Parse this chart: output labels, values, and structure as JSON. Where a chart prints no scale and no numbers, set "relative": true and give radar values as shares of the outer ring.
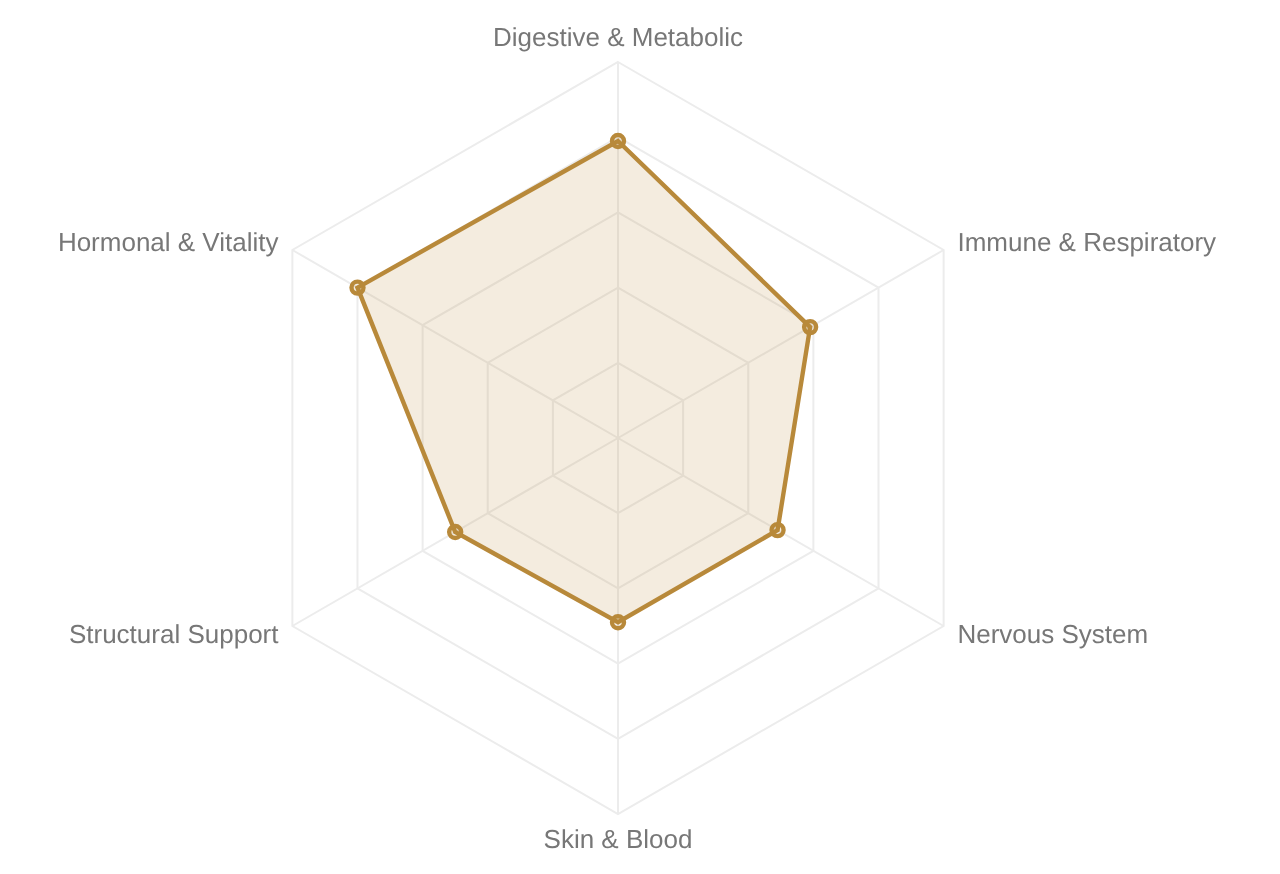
{
  "chart_data": {
    "type": "radar",
    "relative": true,
    "grid": true,
    "marker": "circle",
    "categories": [
      "Digestive & Metabolic",
      "Immune & Respiratory",
      "Nervous System",
      "Skin & Blood",
      "Structural Support",
      "Hormonal & Vitality"
    ],
    "series": [
      {
        "color": "#b8893a",
        "values": [
          0.79,
          0.59,
          0.49,
          0.49,
          0.5,
          0.8
        ]
      }
    ]
  }
}
